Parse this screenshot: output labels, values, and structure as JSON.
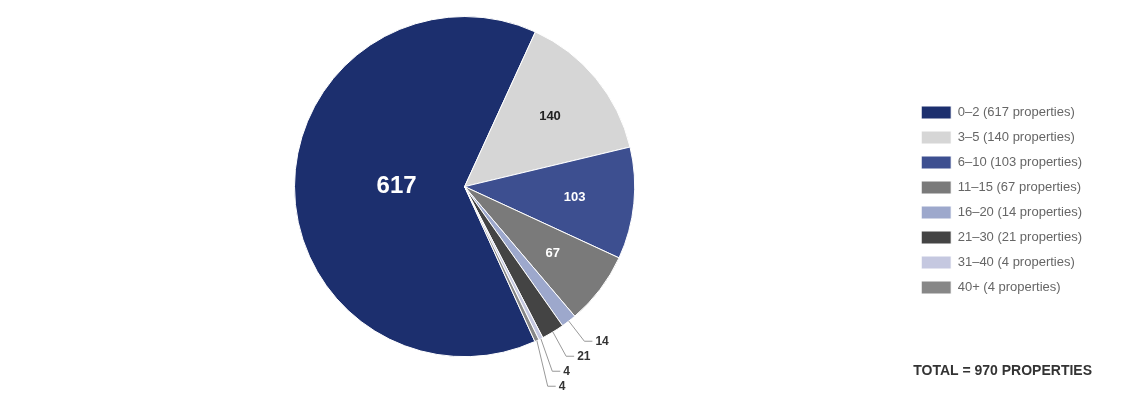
{
  "chart_data": {
    "type": "pie",
    "categories": [
      "0–2 (617 properties)",
      "3–5 (140 properties)",
      "6–10 (103 properties)",
      "11–15 (67 properties)",
      "16–20 (14 properties)",
      "21–30 (21 properties)",
      "31–40 (4 properties)",
      "40+ (4 properties)"
    ],
    "values": [
      617,
      140,
      103,
      67,
      14,
      21,
      4,
      4
    ],
    "colors": [
      "#1c2f6e",
      "#d6d6d6",
      "#3d4f90",
      "#7a7a7a",
      "#9da8cc",
      "#444444",
      "#c5c8e0",
      "#878787"
    ],
    "data_labels": true,
    "legend": "right",
    "annotations": [
      "TOTAL = 970 PROPERTIES"
    ]
  }
}
